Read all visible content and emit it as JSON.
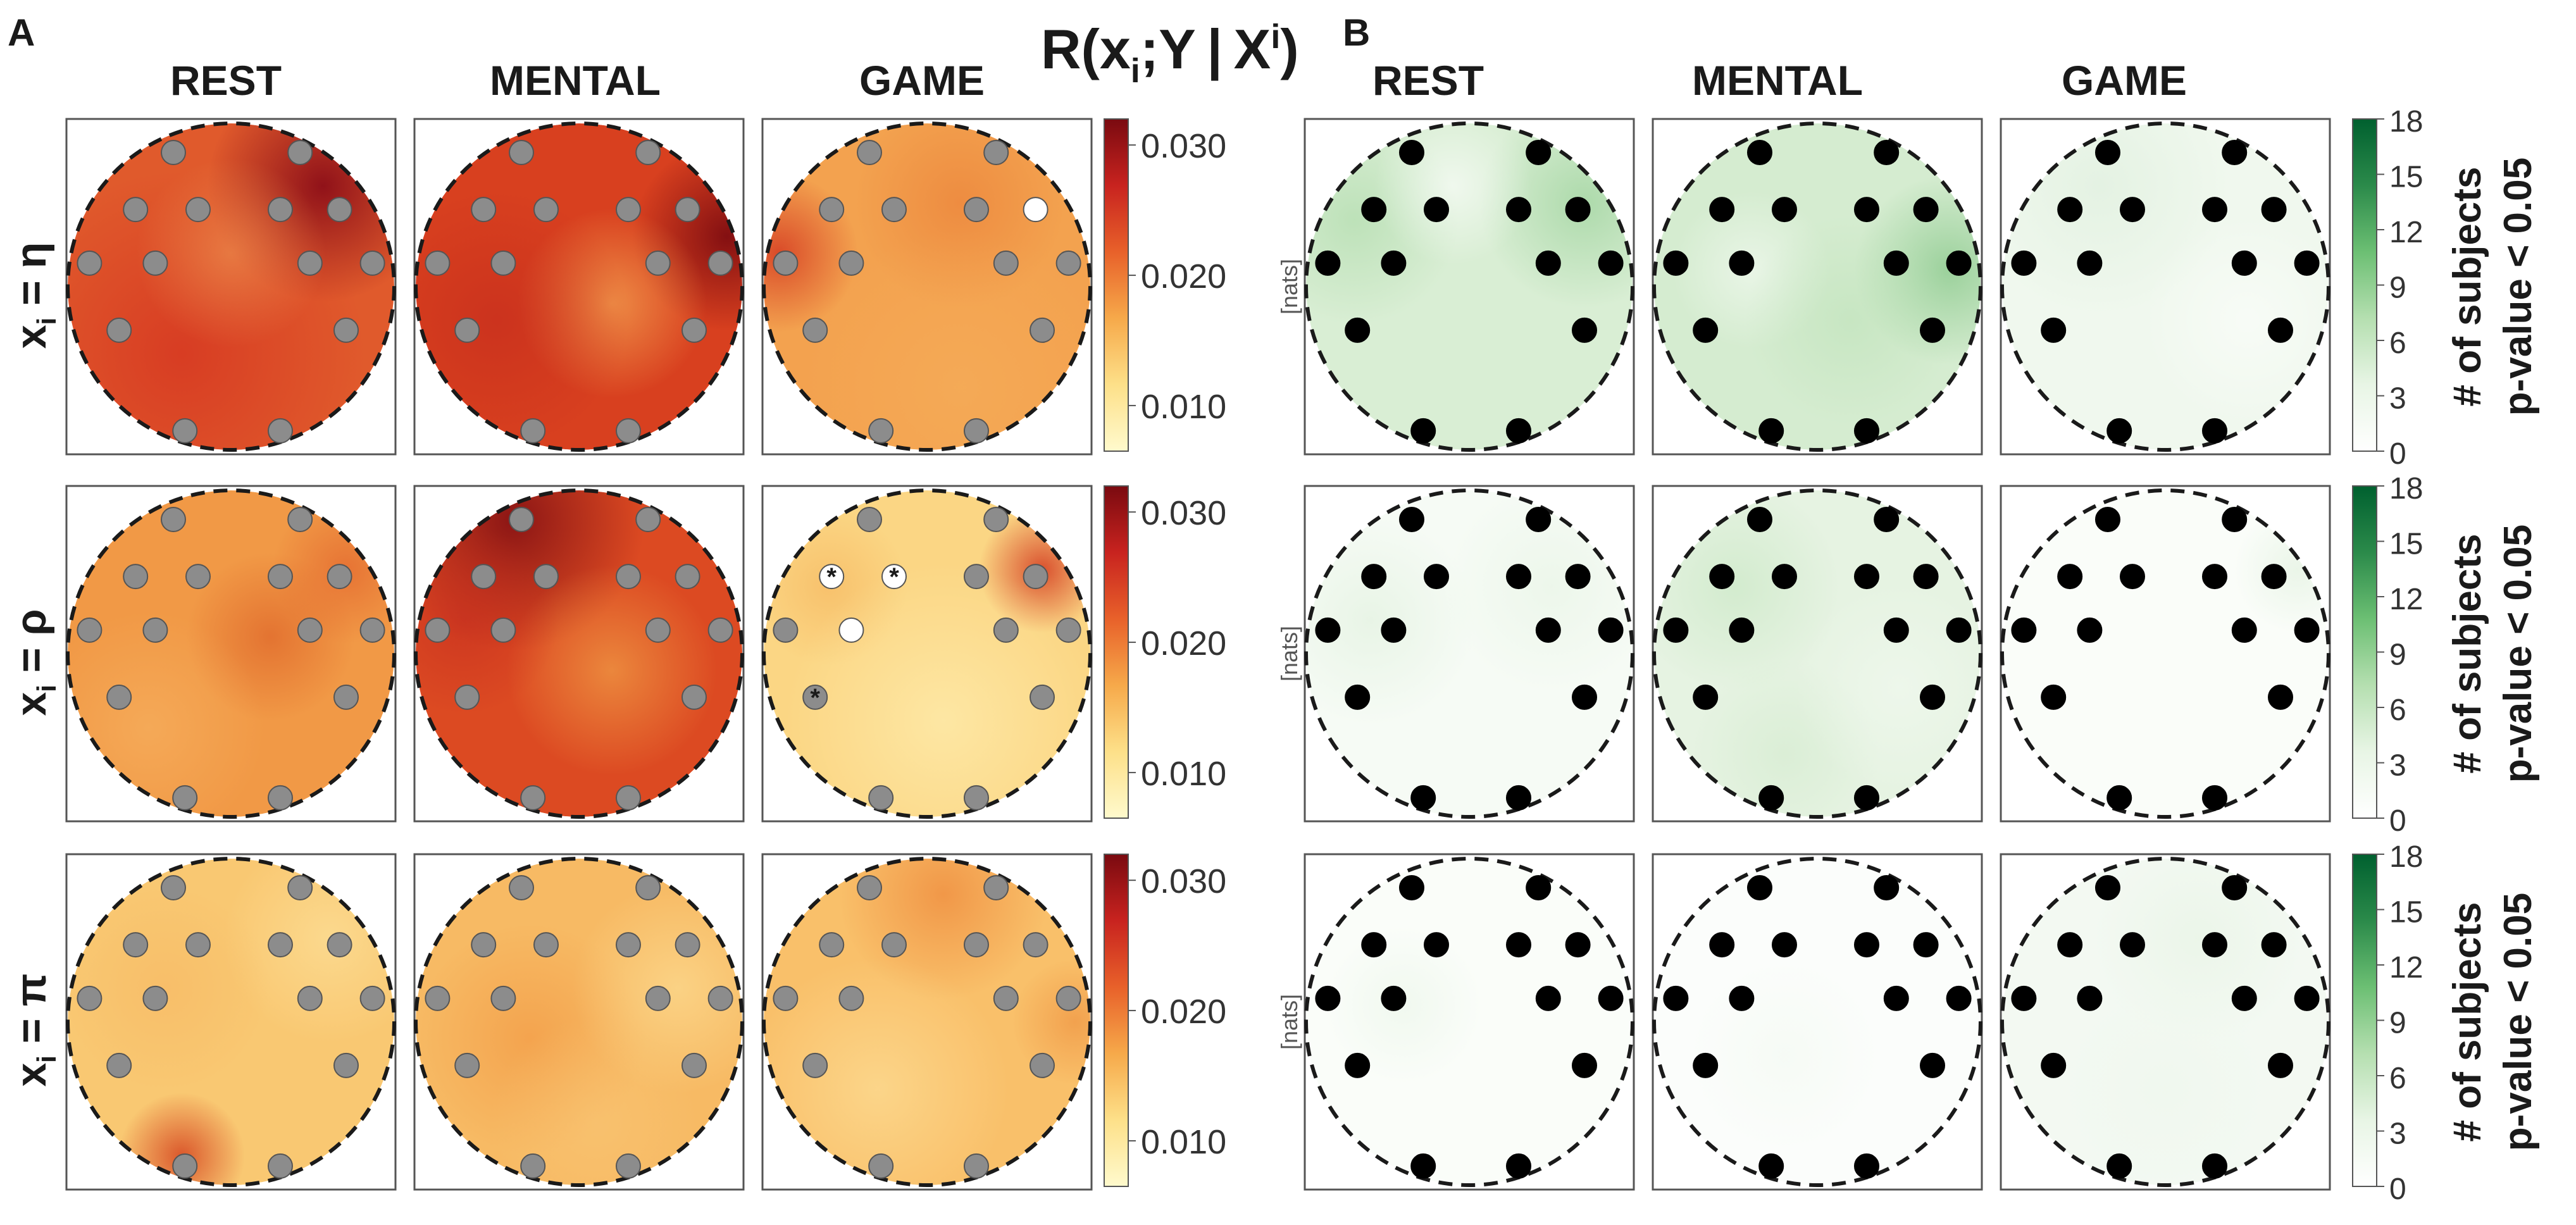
{
  "panel_a": {
    "letter": "A",
    "formula": {
      "main": "R(x",
      "sub": "i",
      "mid": ";Y | X",
      "sup": "i",
      "end": ")"
    },
    "columns": [
      "REST",
      "MENTAL",
      "GAME"
    ],
    "rows": [
      {
        "var": "x",
        "sub": "i",
        "eq": " = η"
      },
      {
        "var": "x",
        "sub": "i",
        "eq": " = ρ"
      },
      {
        "var": "x",
        "sub": "i",
        "eq": " = π"
      }
    ],
    "colorbar_ticks": [
      "0.030",
      "0.020",
      "0.010"
    ],
    "colorbar_range": [
      0.0065,
      0.032
    ],
    "colorbar_colors": [
      "#fffacd",
      "#fde089",
      "#f6a94a",
      "#e8612a",
      "#c8231f",
      "#7a0a10"
    ],
    "unit_label": "[nats]",
    "significance_marks": [
      {
        "row": 1,
        "col": 2,
        "symbol": "*"
      },
      {
        "row": 1,
        "col": 2,
        "symbol": "*"
      },
      {
        "row": 1,
        "col": 2,
        "symbol": "*"
      }
    ]
  },
  "panel_b": {
    "letter": "B",
    "columns": [
      "REST",
      "MENTAL",
      "GAME"
    ],
    "colorbar_ticks": [
      "18",
      "15",
      "12",
      "9",
      "6",
      "3",
      "0"
    ],
    "colorbar_range": [
      0,
      18
    ],
    "colorbar_colors": [
      "#ffffff",
      "#e8f5e5",
      "#b5dfb0",
      "#6cbf73",
      "#2b8a4a",
      "#00602f"
    ],
    "colorbar_title": [
      "# of subjects",
      "p-value < 0.05"
    ]
  },
  "colors": {
    "electrode_a": "#8c8c8c",
    "electrode_b": "#000000",
    "electrode_white": "#ffffff",
    "frame": "#555555",
    "text": "#1a1a1a"
  }
}
